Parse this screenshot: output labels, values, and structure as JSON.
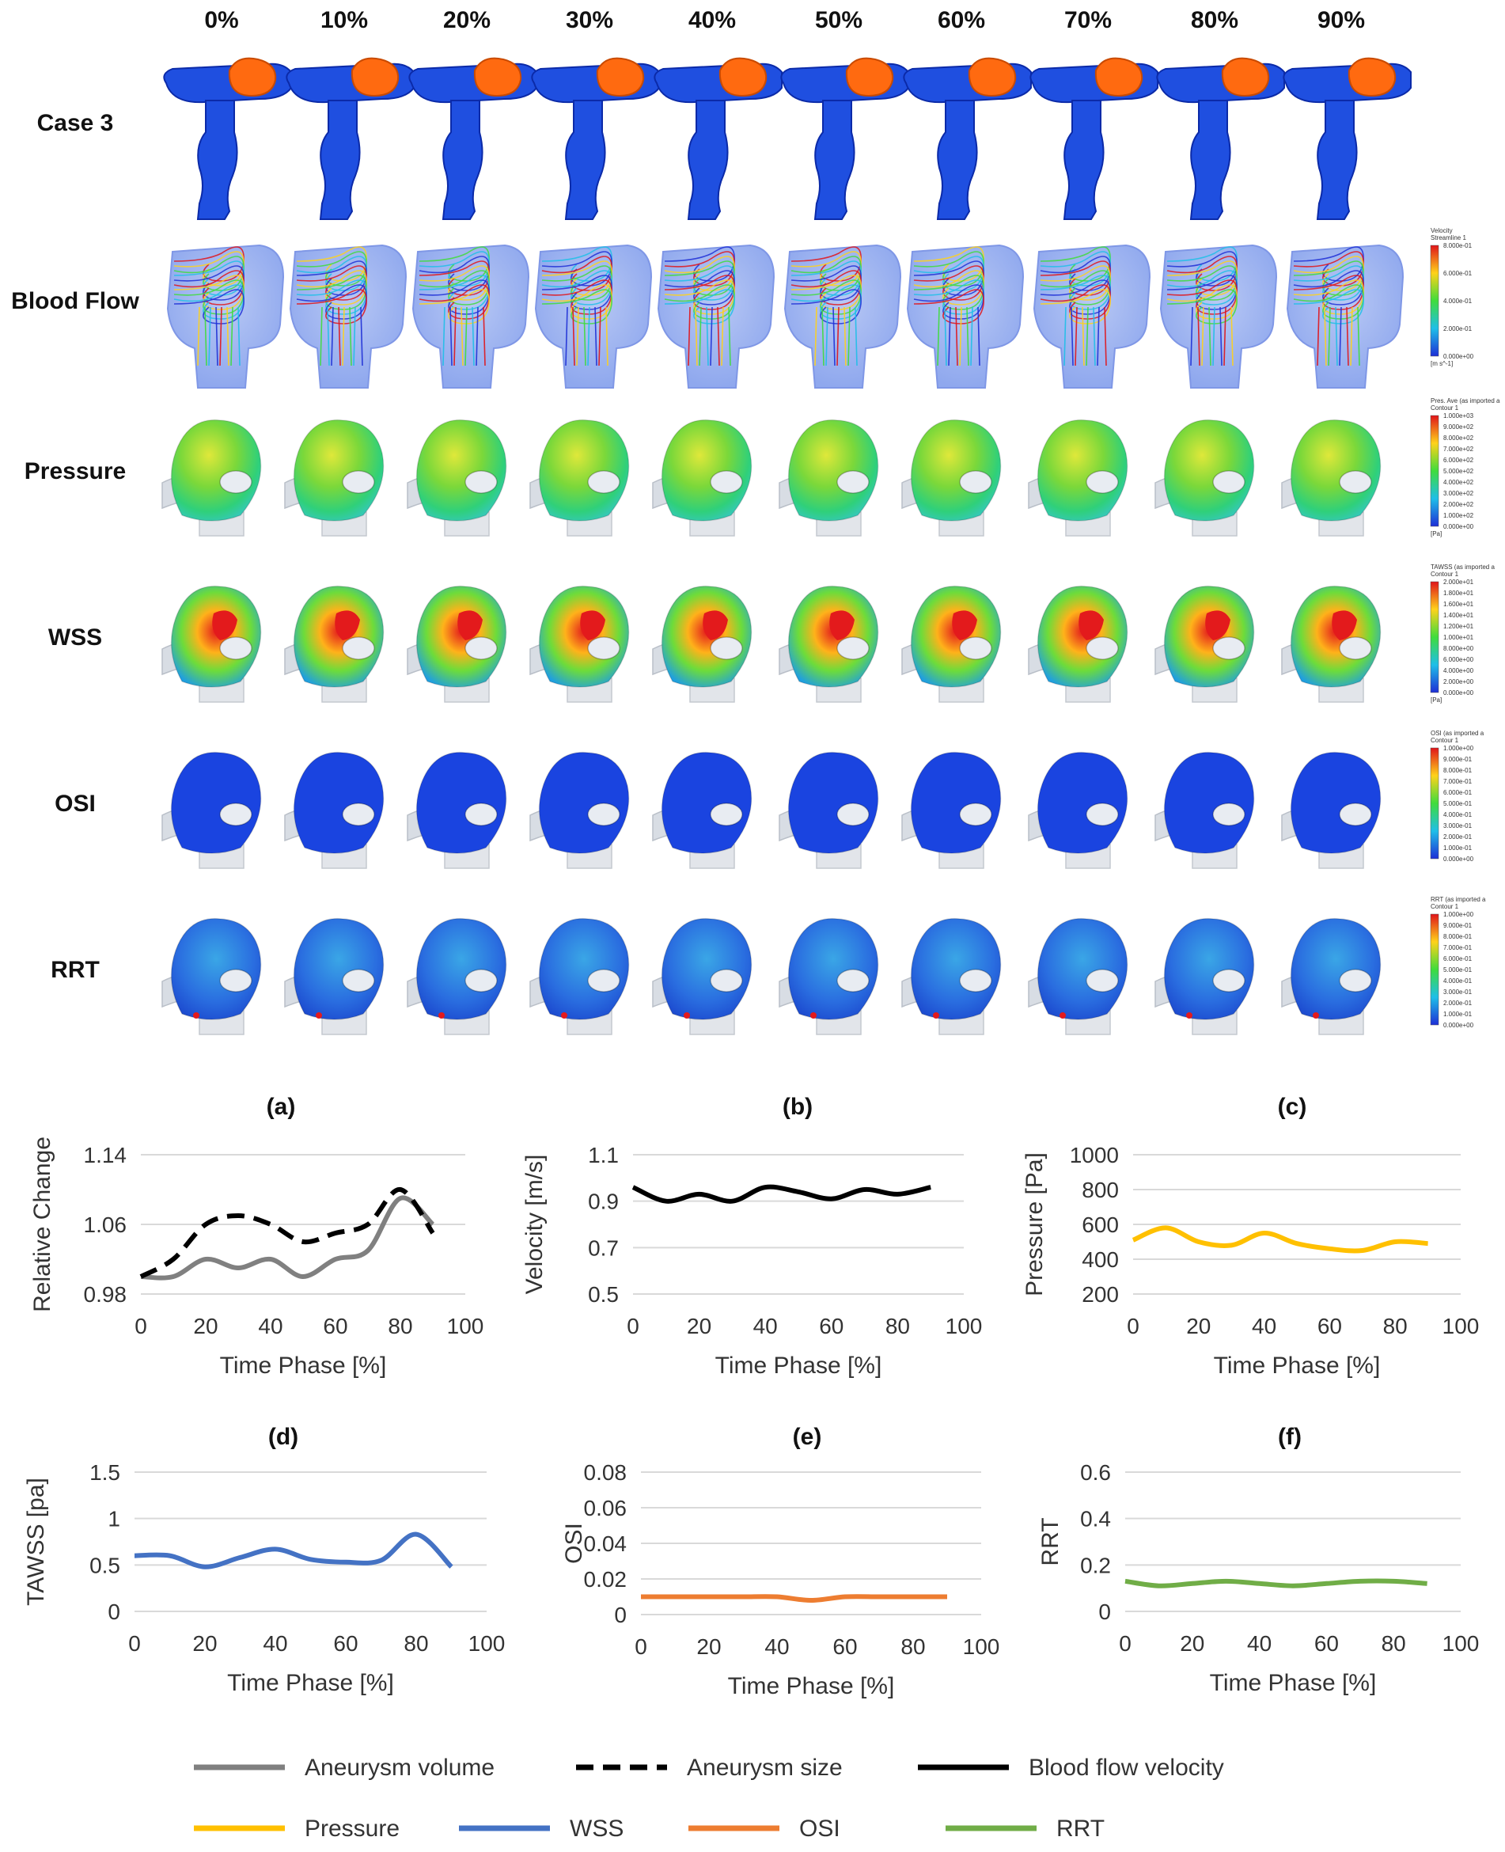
{
  "image_grid": {
    "phases": [
      "0%",
      "10%",
      "20%",
      "30%",
      "40%",
      "50%",
      "60%",
      "70%",
      "80%",
      "90%"
    ],
    "rows": [
      {
        "key": "shape",
        "label": "Case 3"
      },
      {
        "key": "flow",
        "label": "Blood Flow"
      },
      {
        "key": "pressure",
        "label": "Pressure"
      },
      {
        "key": "wss",
        "label": "WSS"
      },
      {
        "key": "osi",
        "label": "OSI"
      },
      {
        "key": "rrt",
        "label": "RRT"
      }
    ],
    "colorbars": [
      {
        "row": "flow",
        "title": [
          "Velocity",
          "Streamline 1"
        ],
        "ticks": [
          "8.000e-01",
          "6.000e-01",
          "4.000e-01",
          "2.000e-01",
          "0.000e+00"
        ],
        "unit": "[m s^-1]"
      },
      {
        "row": "pressure",
        "title": [
          "Pres. Ave (as imported a",
          "Contour 1"
        ],
        "ticks": [
          "1.000e+03",
          "9.000e+02",
          "8.000e+02",
          "7.000e+02",
          "6.000e+02",
          "5.000e+02",
          "4.000e+02",
          "3.000e+02",
          "2.000e+02",
          "1.000e+02",
          "0.000e+00"
        ],
        "unit": "[Pa]"
      },
      {
        "row": "wss",
        "title": [
          "TAWSS (as imported a",
          "Contour 1"
        ],
        "ticks": [
          "2.000e+01",
          "1.800e+01",
          "1.600e+01",
          "1.400e+01",
          "1.200e+01",
          "1.000e+01",
          "8.000e+00",
          "6.000e+00",
          "4.000e+00",
          "2.000e+00",
          "0.000e+00"
        ],
        "unit": "[Pa]"
      },
      {
        "row": "osi",
        "title": [
          "OSI (as imported a",
          "Contour 1"
        ],
        "ticks": [
          "1.000e+00",
          "9.000e-01",
          "8.000e-01",
          "7.000e-01",
          "6.000e-01",
          "5.000e-01",
          "4.000e-01",
          "3.000e-01",
          "2.000e-01",
          "1.000e-01",
          "0.000e+00"
        ],
        "unit": ""
      },
      {
        "row": "rrt",
        "title": [
          "RRT (as imported a",
          "Contour 1"
        ],
        "ticks": [
          "1.000e+00",
          "9.000e-01",
          "8.000e-01",
          "7.000e-01",
          "6.000e-01",
          "5.000e-01",
          "4.000e-01",
          "3.000e-01",
          "2.000e-01",
          "1.000e-01",
          "0.000e+00"
        ],
        "unit": ""
      }
    ]
  },
  "colors": {
    "vessel": "#1f4fe0",
    "vessel_dark": "#0b2aa8",
    "aneurysm": "#ff6a10",
    "volume": "#808080",
    "size": "#000000",
    "velocity": "#000000",
    "pressure": "#ffc000",
    "wss": "#4472c4",
    "osi": "#ed7d31",
    "rrt": "#70ad47",
    "grid": "#d9d9d9"
  },
  "chart_data": [
    {
      "type": "line",
      "panel": "(a)",
      "xlabel": "Time Phase [%]",
      "ylabel": "Relative Change",
      "xlim": [
        0,
        100
      ],
      "xticks": [
        "0",
        "20",
        "40",
        "60",
        "80",
        "100"
      ],
      "ylim": [
        0.98,
        1.14
      ],
      "yticks": [
        "0.98",
        "1.06",
        "1.14"
      ],
      "grid": true,
      "series": [
        {
          "name": "Aneurysm volume",
          "color": "#808080",
          "dash": false,
          "x": [
            0,
            10,
            20,
            30,
            40,
            50,
            60,
            70,
            80,
            90
          ],
          "y": [
            1.0,
            1.0,
            1.02,
            1.01,
            1.02,
            1.0,
            1.02,
            1.03,
            1.09,
            1.06
          ]
        },
        {
          "name": "Aneurysm size",
          "color": "#000000",
          "dash": true,
          "x": [
            0,
            10,
            20,
            30,
            40,
            50,
            60,
            70,
            80,
            90
          ],
          "y": [
            1.0,
            1.02,
            1.06,
            1.07,
            1.06,
            1.04,
            1.05,
            1.06,
            1.1,
            1.05
          ]
        }
      ]
    },
    {
      "type": "line",
      "panel": "(b)",
      "xlabel": "Time Phase [%]",
      "ylabel": "Velocity [m/s]",
      "xlim": [
        0,
        100
      ],
      "xticks": [
        "0",
        "20",
        "40",
        "60",
        "80",
        "100"
      ],
      "ylim": [
        0.5,
        1.1
      ],
      "yticks": [
        "0.5",
        "0.7",
        "0.9",
        "1.1"
      ],
      "grid": true,
      "series": [
        {
          "name": "Blood flow velocity",
          "color": "#000000",
          "dash": false,
          "x": [
            0,
            10,
            20,
            30,
            40,
            50,
            60,
            70,
            80,
            90
          ],
          "y": [
            0.96,
            0.9,
            0.93,
            0.9,
            0.96,
            0.94,
            0.91,
            0.95,
            0.93,
            0.96
          ]
        }
      ]
    },
    {
      "type": "line",
      "panel": "(c)",
      "xlabel": "Time Phase [%]",
      "ylabel": "Pressure [Pa]",
      "xlim": [
        0,
        100
      ],
      "xticks": [
        "0",
        "20",
        "40",
        "60",
        "80",
        "100"
      ],
      "ylim": [
        200,
        1000
      ],
      "yticks": [
        "200",
        "400",
        "600",
        "800",
        "1000"
      ],
      "grid": true,
      "series": [
        {
          "name": "Pressure",
          "color": "#ffc000",
          "dash": false,
          "x": [
            0,
            10,
            20,
            30,
            40,
            50,
            60,
            70,
            80,
            90
          ],
          "y": [
            510,
            580,
            500,
            480,
            550,
            490,
            460,
            450,
            500,
            490
          ]
        }
      ]
    },
    {
      "type": "line",
      "panel": "(d)",
      "xlabel": "Time Phase [%]",
      "ylabel": "TAWSS [pa]",
      "xlim": [
        0,
        100
      ],
      "xticks": [
        "0",
        "20",
        "40",
        "60",
        "80",
        "100"
      ],
      "ylim": [
        0,
        1.5
      ],
      "yticks": [
        "0",
        "0.5",
        "1",
        "1.5"
      ],
      "grid": true,
      "series": [
        {
          "name": "WSS",
          "color": "#4472c4",
          "dash": false,
          "x": [
            0,
            10,
            20,
            30,
            40,
            50,
            60,
            70,
            80,
            90
          ],
          "y": [
            0.6,
            0.6,
            0.48,
            0.58,
            0.67,
            0.56,
            0.53,
            0.55,
            0.83,
            0.48
          ]
        }
      ]
    },
    {
      "type": "line",
      "panel": "(e)",
      "xlabel": "Time Phase [%]",
      "ylabel": "OSI",
      "xlim": [
        0,
        100
      ],
      "xticks": [
        "0",
        "20",
        "40",
        "60",
        "80",
        "100"
      ],
      "ylim": [
        0,
        0.08
      ],
      "yticks": [
        "0",
        "0.02",
        "0.04",
        "0.06",
        "0.08"
      ],
      "grid": true,
      "series": [
        {
          "name": "OSI",
          "color": "#ed7d31",
          "dash": false,
          "x": [
            0,
            10,
            20,
            30,
            40,
            50,
            60,
            70,
            80,
            90
          ],
          "y": [
            0.01,
            0.01,
            0.01,
            0.01,
            0.01,
            0.008,
            0.01,
            0.01,
            0.01,
            0.01
          ]
        }
      ]
    },
    {
      "type": "line",
      "panel": "(f)",
      "xlabel": "Time Phase [%]",
      "ylabel": "RRT",
      "xlim": [
        0,
        100
      ],
      "xticks": [
        "0",
        "20",
        "40",
        "60",
        "80",
        "100"
      ],
      "ylim": [
        0,
        0.6
      ],
      "yticks": [
        "0",
        "0.2",
        "0.4",
        "0.6"
      ],
      "grid": true,
      "series": [
        {
          "name": "RRT",
          "color": "#70ad47",
          "dash": false,
          "x": [
            0,
            10,
            20,
            30,
            40,
            50,
            60,
            70,
            80,
            90
          ],
          "y": [
            0.13,
            0.11,
            0.12,
            0.13,
            0.12,
            0.11,
            0.12,
            0.13,
            0.13,
            0.12
          ]
        }
      ]
    }
  ],
  "legend": {
    "placement": "bottom",
    "items": [
      {
        "label": "Aneurysm volume",
        "color": "#808080",
        "dash": false
      },
      {
        "label": "Aneurysm size",
        "color": "#000000",
        "dash": true
      },
      {
        "label": "Blood flow velocity",
        "color": "#000000",
        "dash": false
      },
      {
        "label": "Pressure",
        "color": "#ffc000",
        "dash": false
      },
      {
        "label": "WSS",
        "color": "#4472c4",
        "dash": false
      },
      {
        "label": "OSI",
        "color": "#ed7d31",
        "dash": false
      },
      {
        "label": "RRT",
        "color": "#70ad47",
        "dash": false
      }
    ]
  }
}
